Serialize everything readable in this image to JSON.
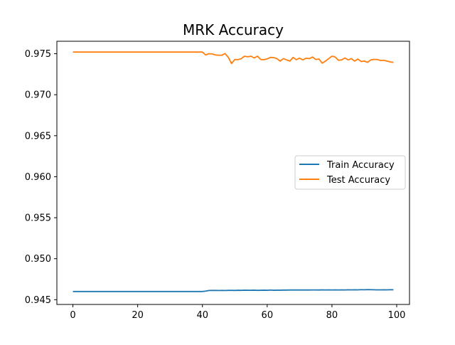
{
  "chart_data": {
    "type": "line",
    "title": "MRK Accuracy",
    "xlabel": "",
    "ylabel": "",
    "xlim": [
      -4.95,
      103.95
    ],
    "ylim": [
      0.94442,
      0.97652
    ],
    "xticks": [
      0,
      20,
      40,
      60,
      80,
      100
    ],
    "yticks": [
      0.945,
      0.95,
      0.955,
      0.96,
      0.965,
      0.97,
      0.975
    ],
    "ytick_labels": [
      "0.945",
      "0.950",
      "0.955",
      "0.960",
      "0.965",
      "0.970",
      "0.975"
    ],
    "xtick_labels": [
      "0",
      "20",
      "40",
      "60",
      "80",
      "100"
    ],
    "legend_position": "center-right",
    "grid": false,
    "x": [
      0,
      1,
      2,
      3,
      4,
      5,
      6,
      7,
      8,
      9,
      10,
      11,
      12,
      13,
      14,
      15,
      16,
      17,
      18,
      19,
      20,
      21,
      22,
      23,
      24,
      25,
      26,
      27,
      28,
      29,
      30,
      31,
      32,
      33,
      34,
      35,
      36,
      37,
      38,
      39,
      40,
      41,
      42,
      43,
      44,
      45,
      46,
      47,
      48,
      49,
      50,
      51,
      52,
      53,
      54,
      55,
      56,
      57,
      58,
      59,
      60,
      61,
      62,
      63,
      64,
      65,
      66,
      67,
      68,
      69,
      70,
      71,
      72,
      73,
      74,
      75,
      76,
      77,
      78,
      79,
      80,
      81,
      82,
      83,
      84,
      85,
      86,
      87,
      88,
      89,
      90,
      91,
      92,
      93,
      94,
      95,
      96,
      97,
      98,
      99
    ],
    "series": [
      {
        "name": "Train Accuracy",
        "color": "#1f77b4",
        "values": [
          0.946,
          0.946,
          0.946,
          0.946,
          0.946,
          0.946,
          0.946,
          0.946,
          0.946,
          0.946,
          0.946,
          0.946,
          0.946,
          0.946,
          0.946,
          0.946,
          0.946,
          0.946,
          0.946,
          0.946,
          0.946,
          0.946,
          0.946,
          0.946,
          0.946,
          0.946,
          0.946,
          0.946,
          0.946,
          0.946,
          0.946,
          0.946,
          0.946,
          0.946,
          0.946,
          0.946,
          0.946,
          0.946,
          0.946,
          0.946,
          0.946,
          0.94605,
          0.94612,
          0.94613,
          0.94613,
          0.94612,
          0.94613,
          0.94612,
          0.94614,
          0.94614,
          0.94613,
          0.94615,
          0.94614,
          0.94616,
          0.94615,
          0.94615,
          0.94616,
          0.94614,
          0.94615,
          0.94616,
          0.94615,
          0.94618,
          0.94615,
          0.94616,
          0.94616,
          0.94617,
          0.94617,
          0.94618,
          0.94619,
          0.94618,
          0.94619,
          0.94618,
          0.94619,
          0.94618,
          0.94619,
          0.94619,
          0.94618,
          0.9462,
          0.94619,
          0.9462,
          0.94619,
          0.9462,
          0.94619,
          0.9462,
          0.94619,
          0.94621,
          0.9462,
          0.94621,
          0.9462,
          0.94622,
          0.94621,
          0.94623,
          0.94622,
          0.94621,
          0.9462,
          0.9462,
          0.94621,
          0.9462,
          0.94622,
          0.94621
        ]
      },
      {
        "name": "Test Accuracy",
        "color": "#ff7f0e",
        "values": [
          0.9752,
          0.9752,
          0.9752,
          0.9752,
          0.9752,
          0.9752,
          0.9752,
          0.9752,
          0.9752,
          0.9752,
          0.9752,
          0.9752,
          0.9752,
          0.9752,
          0.9752,
          0.9752,
          0.9752,
          0.9752,
          0.9752,
          0.9752,
          0.9752,
          0.9752,
          0.9752,
          0.9752,
          0.9752,
          0.9752,
          0.9752,
          0.9752,
          0.9752,
          0.9752,
          0.9752,
          0.9752,
          0.9752,
          0.9752,
          0.9752,
          0.9752,
          0.9752,
          0.9752,
          0.9752,
          0.9752,
          0.9752,
          0.97485,
          0.975,
          0.97498,
          0.97485,
          0.97482,
          0.97482,
          0.97502,
          0.97455,
          0.9738,
          0.9743,
          0.97428,
          0.9744,
          0.9747,
          0.97462,
          0.9747,
          0.97448,
          0.9747,
          0.9743,
          0.97427,
          0.97437,
          0.97455,
          0.97453,
          0.9744,
          0.9741,
          0.9744,
          0.97425,
          0.9741,
          0.97455,
          0.97427,
          0.97445,
          0.97425,
          0.97445,
          0.9744,
          0.9746,
          0.9743,
          0.97435,
          0.97385,
          0.9741,
          0.9744,
          0.9747,
          0.9746,
          0.9742,
          0.97425,
          0.97448,
          0.97425,
          0.9744,
          0.9741,
          0.97435,
          0.97405,
          0.9741,
          0.97395,
          0.97425,
          0.9743,
          0.9743,
          0.97418,
          0.9742,
          0.9741,
          0.974,
          0.97395
        ]
      }
    ]
  }
}
